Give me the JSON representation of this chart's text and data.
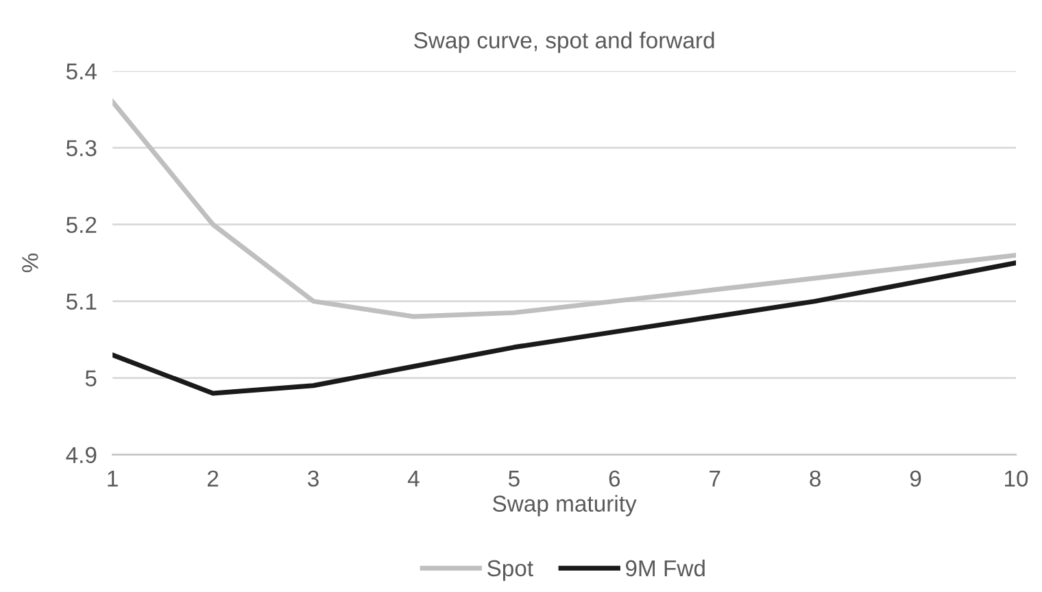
{
  "chart_data": {
    "type": "line",
    "title": "Swap curve, spot and forward",
    "xlabel": "Swap maturity",
    "ylabel": "%",
    "x": [
      1,
      2,
      3,
      4,
      5,
      6,
      7,
      8,
      9,
      10
    ],
    "series": [
      {
        "name": "Spot",
        "color": "#bfbfbf",
        "values": [
          5.36,
          5.2,
          5.1,
          5.08,
          5.085,
          5.1,
          5.115,
          5.13,
          5.145,
          5.16
        ]
      },
      {
        "name": "9M Fwd",
        "color": "#1a1a1a",
        "values": [
          5.03,
          4.98,
          4.99,
          5.015,
          5.04,
          5.06,
          5.08,
          5.1,
          5.125,
          5.15
        ]
      }
    ],
    "xlim": [
      1,
      10
    ],
    "xticks": [
      1,
      2,
      3,
      4,
      5,
      6,
      7,
      8,
      9,
      10
    ],
    "ylim": [
      4.9,
      5.4
    ],
    "yticks": [
      4.9,
      5,
      5.1,
      5.2,
      5.3,
      5.4
    ],
    "grid": "y",
    "legend": "bottom",
    "marker": "none",
    "line_style": "solid"
  }
}
